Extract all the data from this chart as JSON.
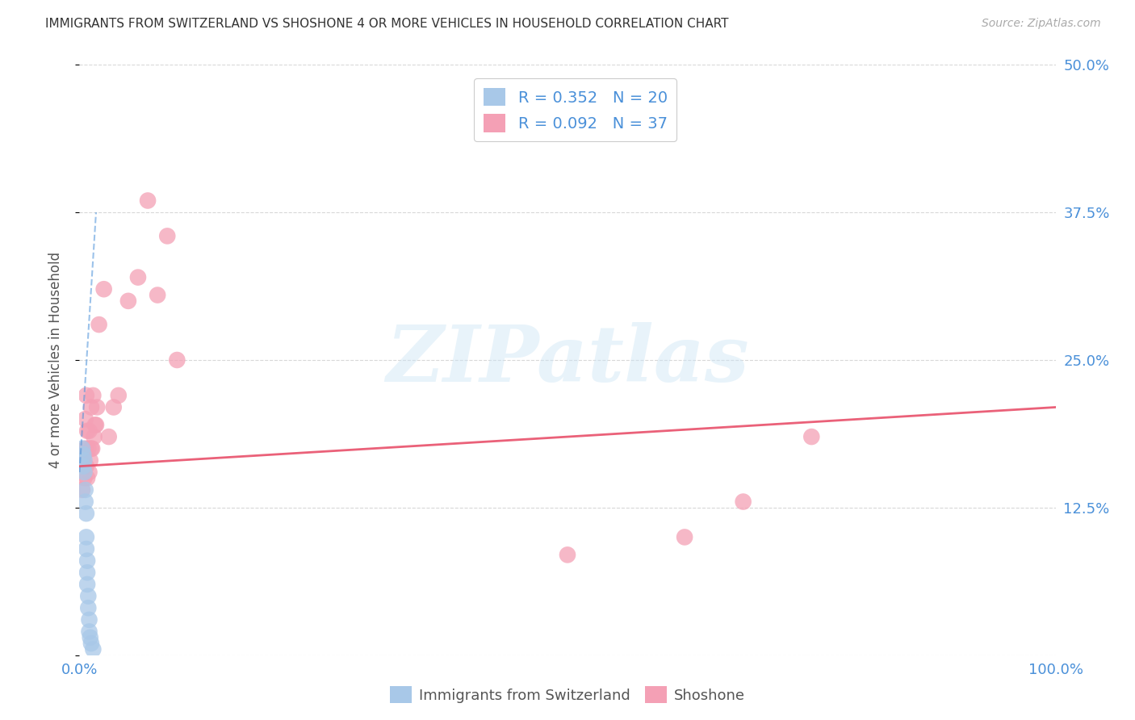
{
  "title": "IMMIGRANTS FROM SWITZERLAND VS SHOSHONE 4 OR MORE VEHICLES IN HOUSEHOLD CORRELATION CHART",
  "source": "Source: ZipAtlas.com",
  "ylabel": "4 or more Vehicles in Household",
  "xlim": [
    0.0,
    1.0
  ],
  "ylim": [
    0.0,
    0.5
  ],
  "xticks": [
    0.0,
    0.2,
    0.4,
    0.6,
    0.8,
    1.0
  ],
  "xticklabels": [
    "0.0%",
    "",
    "",
    "",
    "",
    "100.0%"
  ],
  "yticks": [
    0.0,
    0.125,
    0.25,
    0.375,
    0.5
  ],
  "yticklabels": [
    "",
    "12.5%",
    "25.0%",
    "37.5%",
    "50.0%"
  ],
  "color_blue": "#a8c8e8",
  "color_pink": "#f4a0b5",
  "line_color_blue": "#4a90d9",
  "line_color_pink": "#e8506a",
  "watermark": "ZIPatlas",
  "background_color": "#ffffff",
  "grid_color": "#d8d8d8",
  "title_color": "#333333",
  "axis_label_color": "#555555",
  "tick_label_color": "#4a90d9",
  "blue_scatter_x": [
    0.003,
    0.004,
    0.004,
    0.005,
    0.005,
    0.006,
    0.006,
    0.007,
    0.007,
    0.007,
    0.008,
    0.008,
    0.008,
    0.009,
    0.009,
    0.01,
    0.01,
    0.011,
    0.012,
    0.014
  ],
  "blue_scatter_y": [
    0.175,
    0.17,
    0.16,
    0.155,
    0.165,
    0.14,
    0.13,
    0.12,
    0.1,
    0.09,
    0.08,
    0.07,
    0.06,
    0.05,
    0.04,
    0.03,
    0.02,
    0.015,
    0.01,
    0.005
  ],
  "pink_scatter_x": [
    0.003,
    0.004,
    0.005,
    0.005,
    0.006,
    0.006,
    0.007,
    0.007,
    0.008,
    0.008,
    0.009,
    0.01,
    0.01,
    0.011,
    0.012,
    0.012,
    0.013,
    0.014,
    0.015,
    0.016,
    0.017,
    0.018,
    0.02,
    0.025,
    0.03,
    0.035,
    0.04,
    0.05,
    0.06,
    0.07,
    0.08,
    0.09,
    0.1,
    0.5,
    0.62,
    0.68,
    0.75
  ],
  "pink_scatter_y": [
    0.14,
    0.165,
    0.17,
    0.15,
    0.2,
    0.175,
    0.22,
    0.16,
    0.19,
    0.15,
    0.175,
    0.155,
    0.19,
    0.165,
    0.175,
    0.21,
    0.175,
    0.22,
    0.185,
    0.195,
    0.195,
    0.21,
    0.28,
    0.31,
    0.185,
    0.21,
    0.22,
    0.3,
    0.32,
    0.385,
    0.305,
    0.355,
    0.25,
    0.085,
    0.1,
    0.13,
    0.185
  ],
  "blue_trend_x": [
    0.0,
    0.017
  ],
  "blue_trend_y": [
    0.155,
    0.375
  ],
  "pink_trend_x": [
    0.0,
    1.0
  ],
  "pink_trend_y": [
    0.16,
    0.21
  ]
}
